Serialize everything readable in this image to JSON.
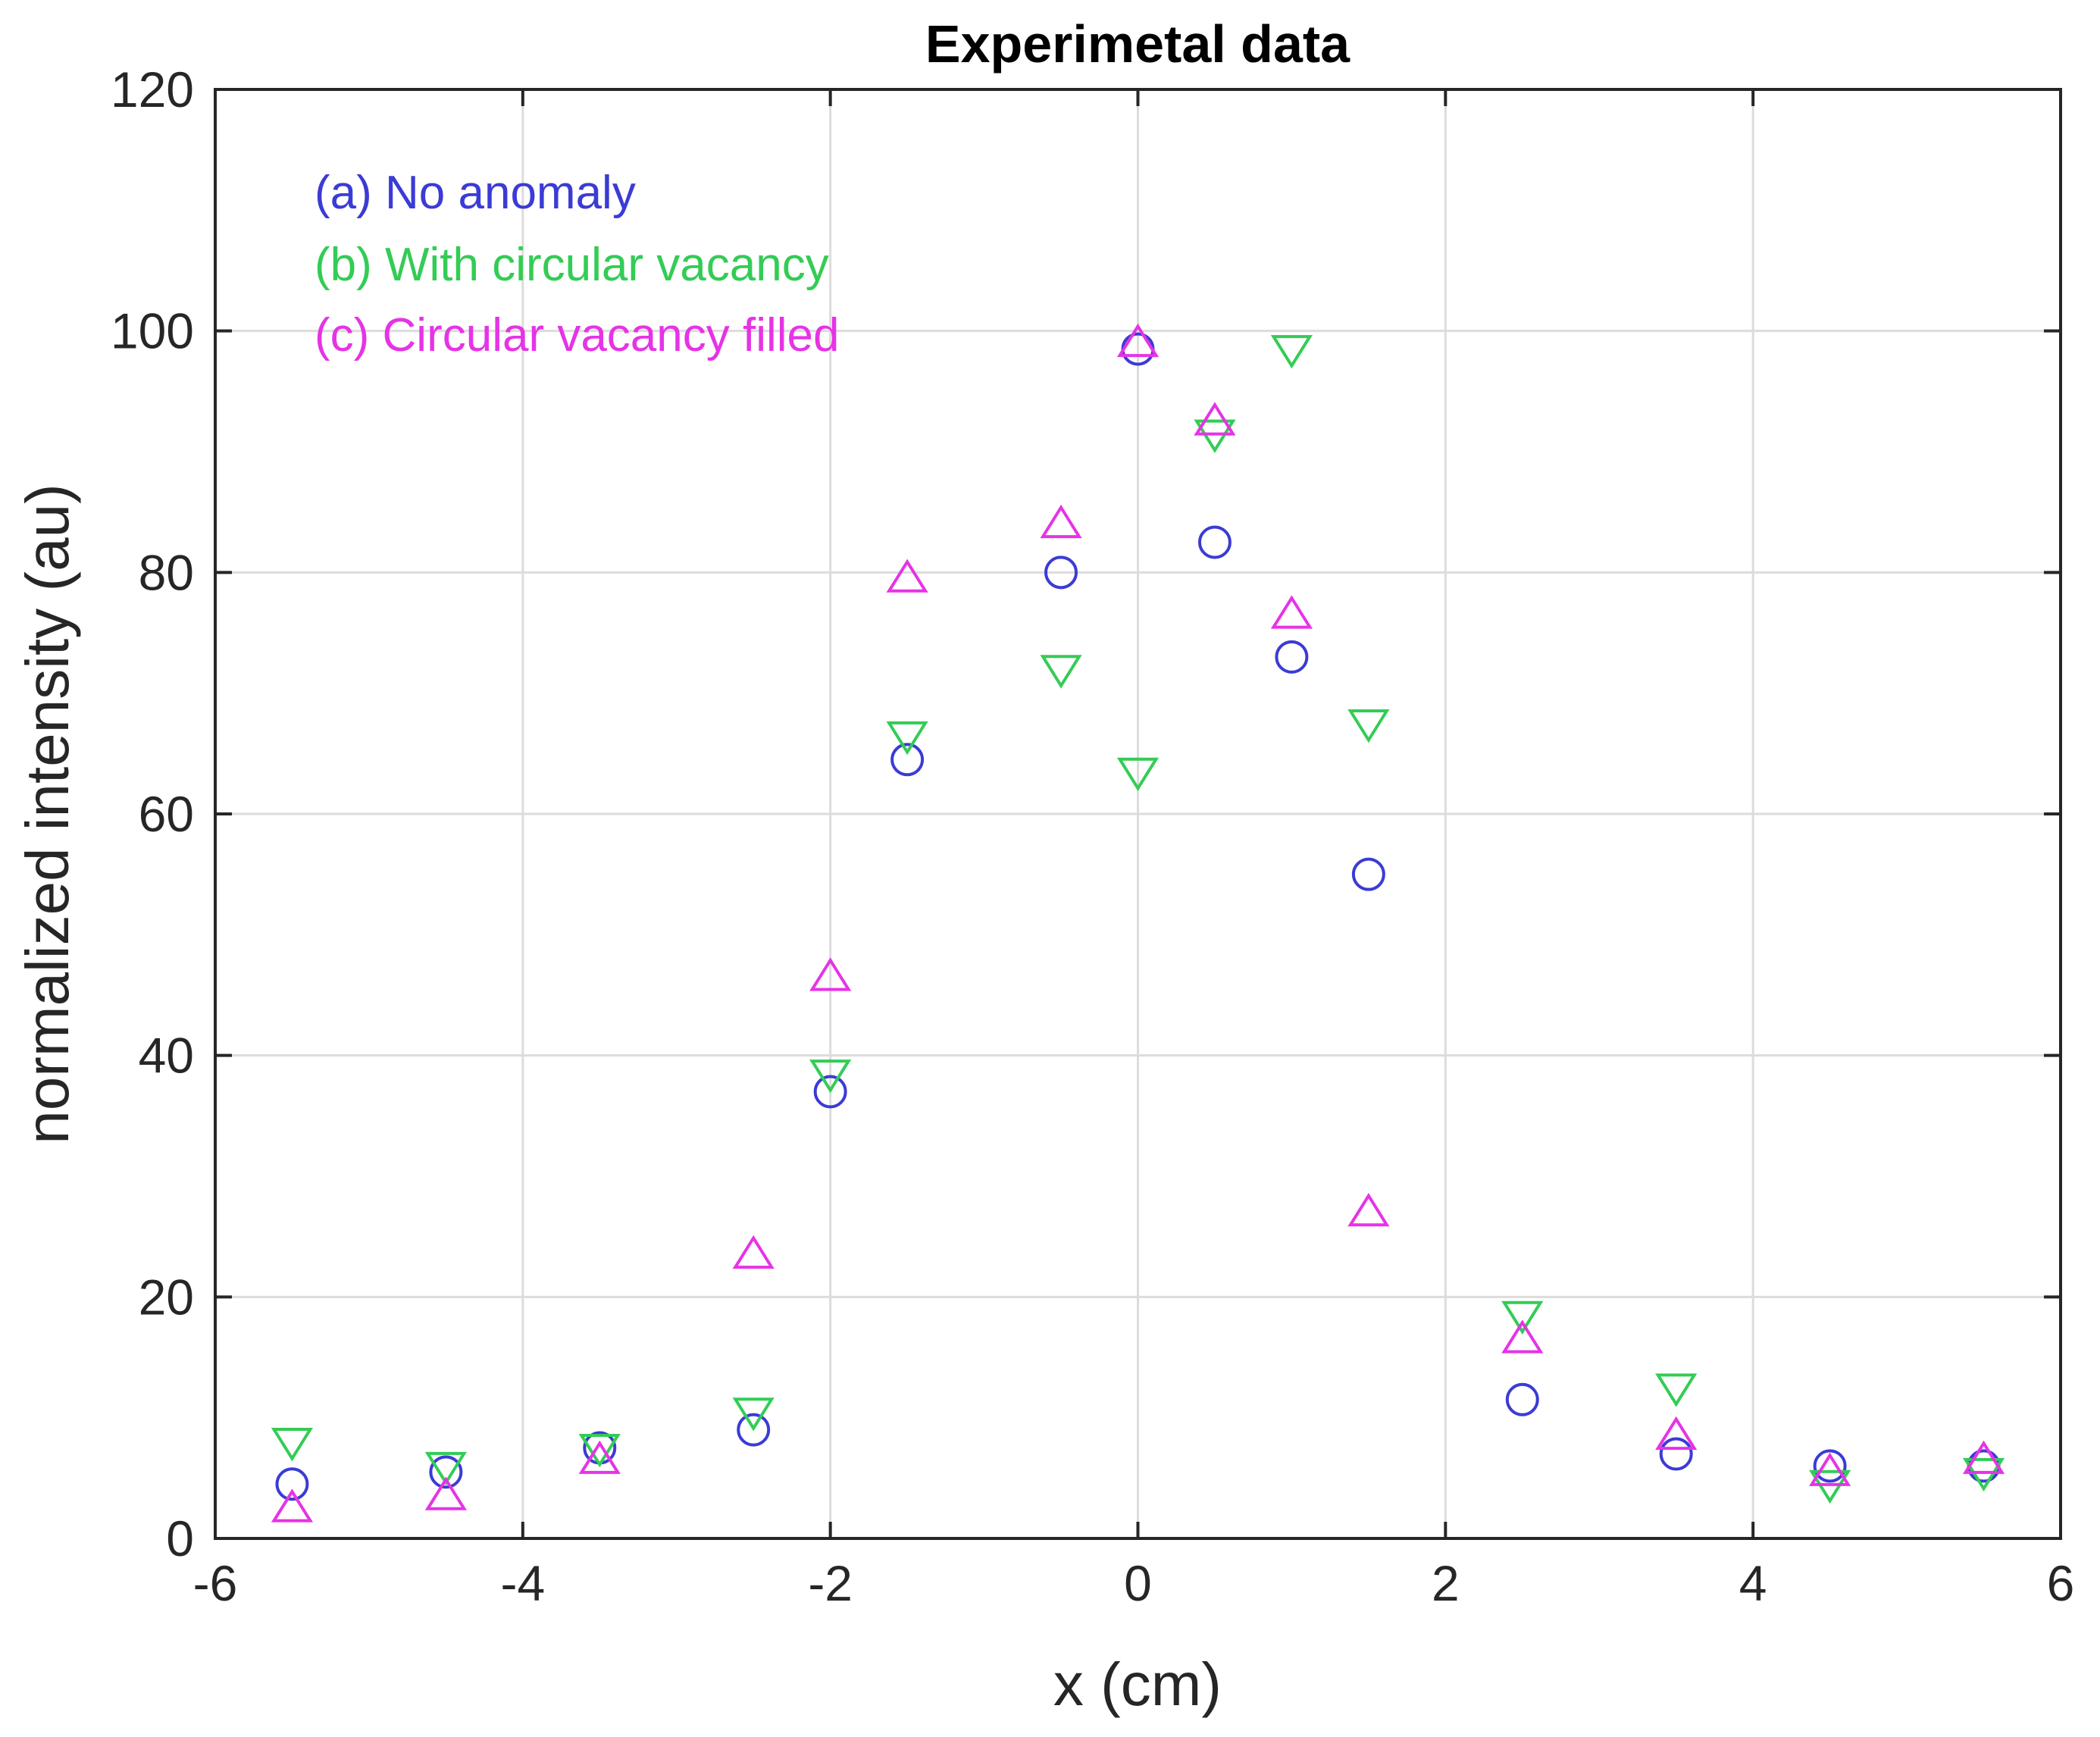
{
  "chart_data": {
    "type": "scatter",
    "title": "Experimetal data",
    "xlabel": "x (cm)",
    "ylabel": "normalized intensity (au)",
    "xlim": [
      -6,
      6
    ],
    "ylim": [
      0,
      120
    ],
    "xticks": [
      -6,
      -4,
      -2,
      0,
      2,
      4,
      6
    ],
    "yticks": [
      0,
      20,
      40,
      60,
      80,
      100,
      120
    ],
    "grid": true,
    "legend_position": "top-left",
    "series": [
      {
        "name": "(a)  No anomaly",
        "marker": "circle",
        "color": "#3b3bd6",
        "x": [
          -5.5,
          -4.5,
          -3.5,
          -2.5,
          -2.0,
          -1.5,
          -0.5,
          0.0,
          0.5,
          1.0,
          1.5,
          2.5,
          3.5,
          4.5,
          5.5
        ],
        "y": [
          4.5,
          5.5,
          7.5,
          9.0,
          37.0,
          64.5,
          80.0,
          98.5,
          82.5,
          73.0,
          55.0,
          11.5,
          7.0,
          6.0,
          6.0
        ]
      },
      {
        "name": "(b)  With circular vacancy",
        "marker": "triangle-down",
        "color": "#33cc55",
        "x": [
          -5.5,
          -4.5,
          -3.5,
          -2.5,
          -2.0,
          -1.5,
          -0.5,
          0.0,
          0.5,
          1.0,
          1.5,
          2.5,
          3.5,
          4.5,
          5.5
        ],
        "y": [
          8.0,
          6.0,
          7.5,
          10.5,
          38.5,
          66.5,
          72.0,
          63.5,
          91.5,
          98.5,
          67.5,
          18.5,
          12.5,
          4.5,
          5.5
        ]
      },
      {
        "name": "(c)  Circular vacancy filled",
        "marker": "triangle-up",
        "color": "#e633e6",
        "x": [
          -5.5,
          -4.5,
          -3.5,
          -2.5,
          -2.0,
          -1.5,
          -0.5,
          0.0,
          0.5,
          1.0,
          1.5,
          2.5,
          3.5,
          4.5,
          5.5
        ],
        "y": [
          2.5,
          3.5,
          6.5,
          23.5,
          46.5,
          79.5,
          84.0,
          99.0,
          92.5,
          76.5,
          27.0,
          16.5,
          8.5,
          5.5,
          6.5
        ]
      }
    ]
  }
}
